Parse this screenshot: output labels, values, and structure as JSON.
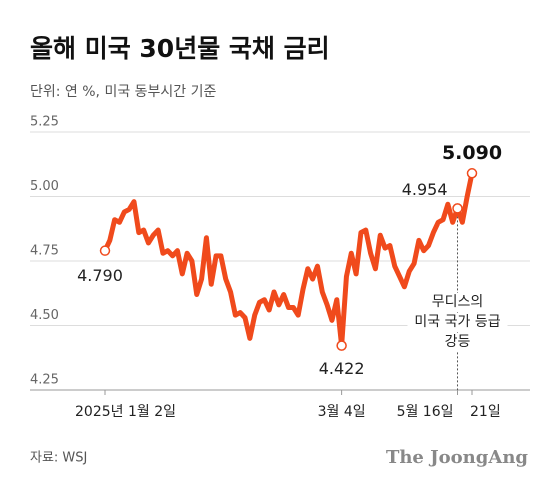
{
  "chart_data": {
    "type": "line",
    "title": "올해 미국 30년물 국채 금리",
    "subtitle": "단위: 연 %, 미국 동부시간 기준",
    "source": "자료: WSJ",
    "logo": "The JoongAng",
    "annotation": [
      "무디스의",
      "미국 국가 등급",
      "강등"
    ],
    "ylim": [
      4.25,
      5.25
    ],
    "yticks": [
      4.25,
      {
        "value": 4.5,
        "label": "4.50"
      },
      4.75,
      {
        "value": 5.0,
        "label": "5.00"
      },
      5.25
    ],
    "grid": true,
    "color": "#f04a1c",
    "categories": [
      "2025년 1월 2일",
      null,
      null,
      null,
      null,
      null,
      null,
      null,
      null,
      null,
      null,
      null,
      null,
      null,
      null,
      null,
      null,
      null,
      null,
      null,
      null,
      null,
      null,
      null,
      null,
      null,
      null,
      null,
      null,
      null,
      null,
      null,
      null,
      null,
      null,
      null,
      null,
      null,
      null,
      null,
      null,
      null,
      null,
      null,
      null,
      null,
      null,
      null,
      null,
      "3월 4일",
      null,
      null,
      null,
      null,
      null,
      null,
      null,
      null,
      null,
      null,
      null,
      null,
      null,
      null,
      null,
      null,
      null,
      null,
      null,
      null,
      null,
      null,
      null,
      "5월 16일",
      null,
      null,
      "21일"
    ],
    "values": [
      4.79,
      4.83,
      4.91,
      4.9,
      4.94,
      4.95,
      4.98,
      4.86,
      4.87,
      4.82,
      4.85,
      4.87,
      4.78,
      4.79,
      4.77,
      4.79,
      4.7,
      4.78,
      4.75,
      4.62,
      4.68,
      4.84,
      4.66,
      4.77,
      4.77,
      4.68,
      4.63,
      4.54,
      4.55,
      4.53,
      4.45,
      4.54,
      4.59,
      4.6,
      4.56,
      4.63,
      4.58,
      4.62,
      4.57,
      4.57,
      4.54,
      4.64,
      4.72,
      4.68,
      4.73,
      4.63,
      4.58,
      4.52,
      4.6,
      4.422,
      4.69,
      4.78,
      4.7,
      4.86,
      4.87,
      4.78,
      4.72,
      4.85,
      4.8,
      4.81,
      4.73,
      4.69,
      4.65,
      4.71,
      4.74,
      4.83,
      4.79,
      4.81,
      4.86,
      4.9,
      4.91,
      4.97,
      4.9,
      4.954,
      4.9,
      5.0,
      5.09
    ],
    "value_labels": [
      "4.790",
      null,
      null,
      null,
      null,
      null,
      null,
      null,
      null,
      null,
      null,
      null,
      null,
      null,
      null,
      null,
      null,
      null,
      null,
      null,
      null,
      null,
      null,
      null,
      null,
      null,
      null,
      null,
      null,
      null,
      null,
      null,
      null,
      null,
      null,
      null,
      null,
      null,
      null,
      null,
      null,
      null,
      null,
      null,
      null,
      null,
      null,
      null,
      null,
      "4.422",
      null,
      null,
      null,
      null,
      null,
      null,
      null,
      null,
      null,
      null,
      null,
      null,
      null,
      null,
      null,
      null,
      null,
      null,
      null,
      null,
      null,
      null,
      null,
      "4.954",
      null,
      null,
      "5.090"
    ]
  }
}
